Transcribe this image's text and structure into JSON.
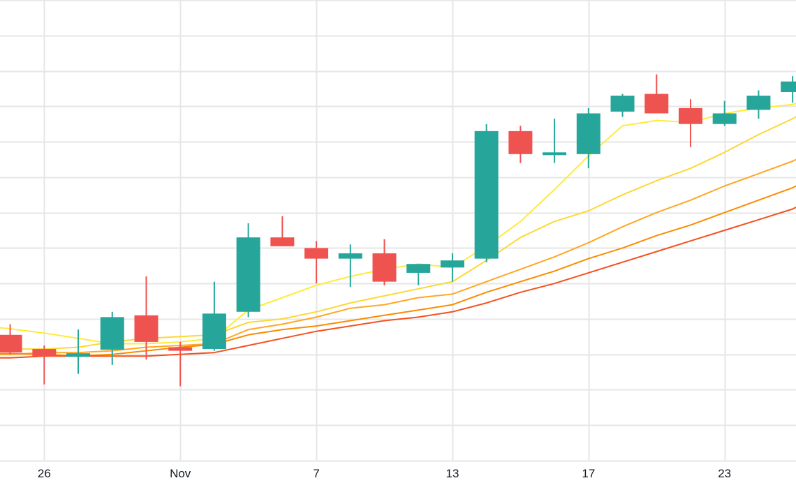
{
  "chart_data": {
    "type": "candlestick",
    "title": "",
    "xlabel": "",
    "ylabel": "",
    "x_tick_labels": [
      "26",
      "Nov",
      "7",
      "13",
      "17",
      "23"
    ],
    "x_tick_positions": [
      2,
      6,
      10,
      14,
      18,
      22
    ],
    "x_range": [
      0.7,
      24.1
    ],
    "ylim": [
      0,
      13
    ],
    "y_axis_labels_visible": false,
    "grid": true,
    "legend": "none",
    "colors": {
      "up": "#26a69a",
      "down": "#ef5350",
      "grid": "#e6e6e6",
      "axis_text": "#131722",
      "ma_fastest": "#ffeb3b",
      "ma_fast": "#fdd835",
      "ma_mid": "#ffa726",
      "ma_slow": "#fb8c00",
      "ma_slowest": "#f4511e"
    },
    "candles": [
      {
        "x": 1,
        "open": 3.55,
        "high": 3.85,
        "low": 3.0,
        "close": 3.05
      },
      {
        "x": 2,
        "open": 3.15,
        "high": 3.25,
        "low": 2.15,
        "close": 2.95
      },
      {
        "x": 3,
        "open": 2.93,
        "high": 3.7,
        "low": 2.45,
        "close": 3.03
      },
      {
        "x": 4,
        "open": 3.13,
        "high": 4.2,
        "low": 2.7,
        "close": 4.05
      },
      {
        "x": 5,
        "open": 4.1,
        "high": 5.2,
        "low": 2.85,
        "close": 3.35
      },
      {
        "x": 6,
        "open": 3.2,
        "high": 3.35,
        "low": 2.1,
        "close": 3.1
      },
      {
        "x": 7,
        "open": 3.15,
        "high": 5.05,
        "low": 3.1,
        "close": 4.15
      },
      {
        "x": 8,
        "open": 4.2,
        "high": 6.7,
        "low": 4.05,
        "close": 6.3
      },
      {
        "x": 9,
        "open": 6.3,
        "high": 6.9,
        "low": 6.05,
        "close": 6.05
      },
      {
        "x": 10,
        "open": 6.0,
        "high": 6.2,
        "low": 5.0,
        "close": 5.7
      },
      {
        "x": 11,
        "open": 5.7,
        "high": 6.1,
        "low": 4.9,
        "close": 5.85
      },
      {
        "x": 12,
        "open": 5.85,
        "high": 6.25,
        "low": 4.95,
        "close": 5.05
      },
      {
        "x": 13,
        "open": 5.3,
        "high": 5.55,
        "low": 4.95,
        "close": 5.55
      },
      {
        "x": 14,
        "open": 5.45,
        "high": 5.85,
        "low": 5.05,
        "close": 5.65
      },
      {
        "x": 15,
        "open": 5.7,
        "high": 9.5,
        "low": 5.6,
        "close": 9.3
      },
      {
        "x": 16,
        "open": 9.3,
        "high": 9.45,
        "low": 8.4,
        "close": 8.65
      },
      {
        "x": 17,
        "open": 8.7,
        "high": 9.65,
        "low": 8.4,
        "close": 8.7
      },
      {
        "x": 18,
        "open": 8.65,
        "high": 9.95,
        "low": 8.25,
        "close": 9.8
      },
      {
        "x": 19,
        "open": 9.85,
        "high": 10.35,
        "low": 9.7,
        "close": 10.3
      },
      {
        "x": 20,
        "open": 10.35,
        "high": 10.9,
        "low": 9.85,
        "close": 9.8
      },
      {
        "x": 21,
        "open": 9.95,
        "high": 10.2,
        "low": 8.85,
        "close": 9.5
      },
      {
        "x": 22,
        "open": 9.5,
        "high": 10.15,
        "low": 9.45,
        "close": 9.8
      },
      {
        "x": 23,
        "open": 9.9,
        "high": 10.45,
        "low": 9.65,
        "close": 10.3
      },
      {
        "x": 24,
        "open": 10.4,
        "high": 10.85,
        "low": 10.1,
        "close": 10.7
      }
    ],
    "series": [
      {
        "key": "ma_fastest",
        "x": [
          0.7,
          1,
          2,
          3,
          4,
          5,
          6,
          7,
          7.5,
          8,
          9,
          10,
          11,
          12,
          13,
          14,
          15,
          16,
          17,
          18,
          19,
          20,
          21,
          22,
          23,
          24,
          24.1
        ],
        "values": [
          3.75,
          3.72,
          3.6,
          3.45,
          3.3,
          3.3,
          3.35,
          3.45,
          3.85,
          4.25,
          4.6,
          4.95,
          5.2,
          5.4,
          5.55,
          5.45,
          6.05,
          6.75,
          7.65,
          8.6,
          9.45,
          9.6,
          9.55,
          9.8,
          9.95,
          10.05,
          10.08
        ]
      },
      {
        "key": "ma_fast",
        "x": [
          0.7,
          1,
          2,
          3,
          4,
          5,
          6,
          7,
          8,
          9,
          10,
          11,
          12,
          13,
          14,
          15,
          16,
          17,
          18,
          19,
          20,
          21,
          22,
          23,
          24,
          24.1
        ],
        "values": [
          3.15,
          3.15,
          3.15,
          3.2,
          3.35,
          3.45,
          3.5,
          3.55,
          3.9,
          4.0,
          4.2,
          4.45,
          4.65,
          4.85,
          5.05,
          5.65,
          6.3,
          6.75,
          7.05,
          7.5,
          7.9,
          8.25,
          8.7,
          9.2,
          9.65,
          9.7
        ]
      },
      {
        "key": "ma_mid",
        "x": [
          0.7,
          1,
          2,
          3,
          4,
          5,
          6,
          7,
          8,
          9,
          10,
          11,
          12,
          13,
          14,
          15,
          16,
          17,
          18,
          19,
          20,
          21,
          22,
          23,
          24,
          24.1
        ],
        "values": [
          3.0,
          3.0,
          3.05,
          3.05,
          3.1,
          3.2,
          3.25,
          3.3,
          3.7,
          3.85,
          4.05,
          4.3,
          4.4,
          4.6,
          4.7,
          5.05,
          5.4,
          5.75,
          6.15,
          6.6,
          7.0,
          7.35,
          7.75,
          8.1,
          8.45,
          8.5
        ]
      },
      {
        "key": "ma_slow",
        "x": [
          0.7,
          1,
          2,
          3,
          4,
          5,
          6,
          7,
          8,
          9,
          10,
          11,
          12,
          13,
          14,
          15,
          16,
          17,
          18,
          19,
          20,
          21,
          22,
          23,
          24,
          24.1
        ],
        "values": [
          3.02,
          3.02,
          3.0,
          2.95,
          3.0,
          3.1,
          3.2,
          3.28,
          3.55,
          3.7,
          3.8,
          3.95,
          4.1,
          4.25,
          4.4,
          4.75,
          5.05,
          5.35,
          5.7,
          6.0,
          6.35,
          6.65,
          7.0,
          7.35,
          7.7,
          7.75
        ]
      },
      {
        "key": "ma_slowest",
        "x": [
          0.7,
          1,
          2,
          3,
          4,
          5,
          6,
          7,
          8,
          9,
          10,
          11,
          12,
          13,
          14,
          15,
          16,
          17,
          18,
          19,
          20,
          21,
          22,
          23,
          24,
          24.1
        ],
        "values": [
          2.9,
          2.9,
          2.95,
          2.95,
          2.95,
          2.95,
          3.0,
          3.05,
          3.25,
          3.45,
          3.65,
          3.8,
          3.95,
          4.05,
          4.2,
          4.45,
          4.75,
          5.0,
          5.3,
          5.6,
          5.9,
          6.2,
          6.5,
          6.8,
          7.1,
          7.15
        ]
      }
    ]
  }
}
